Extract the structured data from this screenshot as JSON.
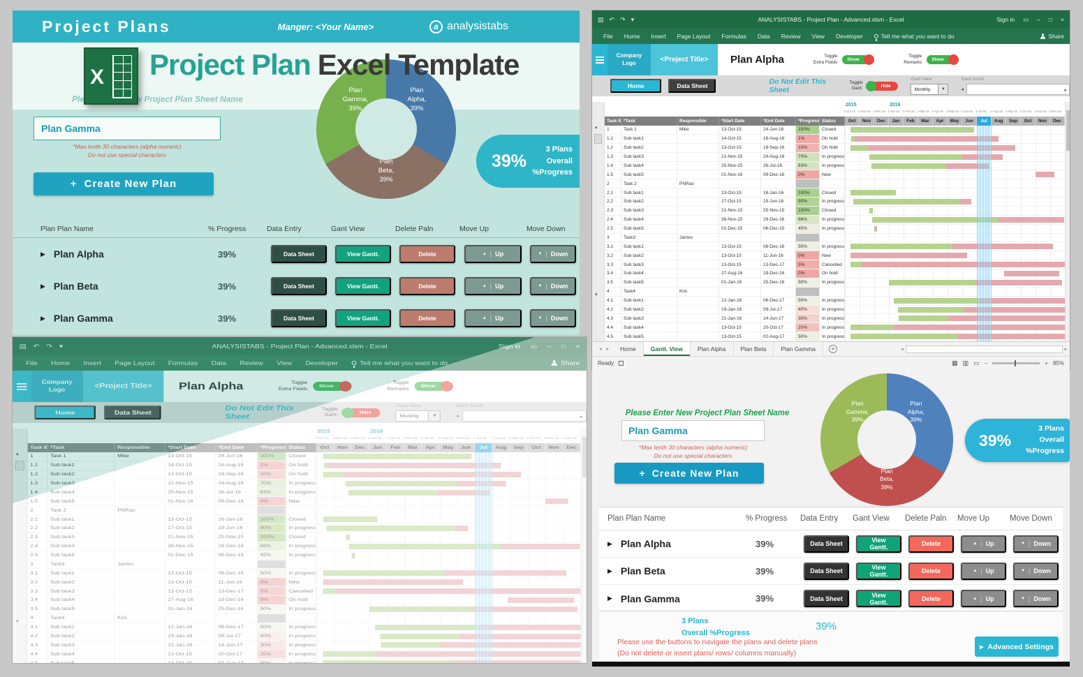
{
  "dashboard": {
    "banner": {
      "title": "Project Plans",
      "manager": "Manger: <Your Name>",
      "brand": "analysistabs",
      "brand_initial": "a"
    },
    "heading": {
      "accent": "Project Plan",
      "rest": "Excel Template"
    },
    "prompt": "Please Enter New Project Plan Sheet Name",
    "input_value": "Plan Gamma",
    "note1": "*Max lenth 30 characters (alpha numeric)",
    "note2": "Do not use special characters",
    "create_plus": "+",
    "create_button_label": "Create New Plan",
    "badge": {
      "value": "39%",
      "line1": "3 Plans",
      "line2": "Overall %Progress"
    },
    "footer": {
      "line1": "3 Plans",
      "line2": "Overall %Progress",
      "overall": "39%",
      "note1": "Please use the buttons to navigate the plans and delete plans",
      "note2": "(Do not delete or insert plans/ rows/ columns manually)",
      "advanced_label": "Advanced Settings"
    },
    "donut": {
      "slices": [
        {
          "name": "Plan Alpha",
          "value": 39,
          "lines": [
            "Plan",
            "Alpha,",
            "39%"
          ]
        },
        {
          "name": "Plan Beta",
          "value": 39,
          "lines": [
            "Plan",
            "Beta,",
            "39%"
          ]
        },
        {
          "name": "Plan Gamma",
          "value": 39,
          "lines": [
            "Plan",
            "Gamma,",
            "39%"
          ]
        }
      ]
    }
  },
  "plans": {
    "headers": [
      "Plan Plan Name",
      "% Progress",
      "Data Entry",
      "Gant View",
      "Delete Paln",
      "Move Up",
      "Move Down"
    ],
    "rows": [
      {
        "name": "Plan Alpha",
        "progress": "39%"
      },
      {
        "name": "Plan Beta",
        "progress": "39%"
      },
      {
        "name": "Plan Gamma",
        "progress": "39%"
      }
    ],
    "btn_data_sheet": "Data Sheet",
    "btn_view_gantt": "View Gantt.",
    "btn_delete": "Delete",
    "btn_up": "Up",
    "btn_down": "Down"
  },
  "excel": {
    "window_title": "ANALYSISTABS - Project Plan - Advanced.xlsm - Excel",
    "sign_in": "Sign in",
    "menu": [
      "File",
      "Home",
      "Insert",
      "Page Layout",
      "Formulas",
      "Data",
      "Review",
      "View",
      "Developer"
    ],
    "tell_me": "Tell me what you want to do",
    "share": "Share",
    "sheet_tabs": [
      "Home",
      "Gantt. View",
      "Plan Alpha",
      "Plan Beta",
      "Plan Gamma"
    ],
    "active_tab": "Gantt. View",
    "status_ready": "Ready",
    "zoom_level": "85%"
  },
  "gantt": {
    "logo_line1": "Company",
    "logo_line2": "Logo",
    "project_title": "<Project Title>",
    "plan_name": "Plan Alpha",
    "toggle_extra_l1": "Toggle",
    "toggle_extra_l2": "Extra Fields",
    "toggle_remarks_l1": "Toggle",
    "toggle_remarks_l2": "Remarks",
    "toggle_gant_l1": "Toggle",
    "toggle_gant_l2": "Gant:",
    "show_label": "Show",
    "hide_label": "Hide",
    "home_btn": "Home",
    "data_sheet_btn": "Data Sheet",
    "warning": "Do Not Edit This Sheet",
    "gant_view_label": "Gant View",
    "gant_scroll_label": "Gant Scroll",
    "view_mode": "Monthly",
    "years": [
      {
        "label": "2015",
        "col": 0
      },
      {
        "label": "2016",
        "col": 3
      }
    ],
    "date_ticks": [
      "1-Oct-15",
      "1-Nov-15",
      "1-Dec-15",
      "1-Jan-16",
      "1-Feb-16",
      "1-Mar-16",
      "1-Apr-16",
      "1-May-16",
      "1-Jun-16",
      "1-Jul-16",
      "1-Aug-16",
      "1-Sep-16",
      "1-Oct-16",
      "1-Nov-16",
      "1-Dec-16"
    ],
    "months": [
      "Oct",
      "Nov",
      "Dec",
      "Jan",
      "Feb",
      "Mar",
      "Apr",
      "May",
      "Jun",
      "Jul",
      "Aug",
      "Sep",
      "Oct",
      "Nov",
      "Dec"
    ],
    "current_month_index": 9,
    "table_headers": [
      "Task ID",
      "*Task",
      "Responsible",
      "*Start Date",
      "*End Date",
      "*Progress%",
      "Status"
    ],
    "tasks": [
      {
        "id": "1",
        "task": "Task 1",
        "resp": "Mike",
        "start": "13-Oct-15",
        "end": "24-Jun-16",
        "prog": "100%",
        "status": "Closed",
        "pc": "#a9d08e",
        "bs": 0.4,
        "be": 8.8,
        "bg": 1
      },
      {
        "id": "1.1",
        "task": "Sub task1",
        "resp": "",
        "start": "14-Oct-15",
        "end": "16-Aug-16",
        "prog": "1%",
        "status": "On hold",
        "pc": "#efa9a6",
        "bs": 0.45,
        "be": 10.5,
        "bg": 0.02
      },
      {
        "id": "1.2",
        "task": "Sub task2",
        "resp": "",
        "start": "13-Oct-15",
        "end": "18-Sep-16",
        "prog": "10%",
        "status": "On hold",
        "pc": "#f0b4b1",
        "bs": 0.4,
        "be": 11.6,
        "bg": 0.1
      },
      {
        "id": "1.3",
        "task": "Sub task3",
        "resp": "",
        "start": "21-Nov-15",
        "end": "24-Aug-16",
        "prog": "70%",
        "status": "In progress",
        "pc": "#cfe2bb",
        "bs": 1.65,
        "be": 10.75,
        "bg": 0.7
      },
      {
        "id": "1.4",
        "task": "Sub task4",
        "resp": "",
        "start": "25-Nov-15",
        "end": "26-Jul-16",
        "prog": "63%",
        "status": "In progress",
        "pc": "#d4e4c2",
        "bs": 1.8,
        "be": 9.85,
        "bg": 0.63
      },
      {
        "id": "1.5",
        "task": "Sub task5",
        "resp": "",
        "start": "01-Nov-16",
        "end": "09-Dec-16",
        "prog": "0%",
        "status": "New",
        "pc": "#eea7a4",
        "bs": 13,
        "be": 14.3,
        "bg": 0
      },
      {
        "id": "2",
        "task": "Task 2",
        "resp": "PNRao",
        "start": "",
        "end": "",
        "prog": "",
        "status": "",
        "pc": "#bfbfbf",
        "bs": null,
        "be": null,
        "bg": 0
      },
      {
        "id": "2.1",
        "task": "Sub task1",
        "resp": "",
        "start": "13-Oct-15",
        "end": "16-Jan-16",
        "prog": "100%",
        "status": "Closed",
        "pc": "#a9d08e",
        "bs": 0.4,
        "be": 3.5,
        "bg": 1
      },
      {
        "id": "2.2",
        "task": "Sub task2",
        "resp": "",
        "start": "17-Oct-15",
        "end": "19-Jun-16",
        "prog": "90%",
        "status": "In progress",
        "pc": "#b2d48f",
        "bs": 0.55,
        "be": 8.6,
        "bg": 0.9
      },
      {
        "id": "2.3",
        "task": "Sub task3",
        "resp": "",
        "start": "21-Nov-15",
        "end": "25-Nov-15",
        "prog": "100%",
        "status": "Closed",
        "pc": "#a9d08e",
        "bs": 1.65,
        "be": 1.9,
        "bg": 1
      },
      {
        "id": "2.4",
        "task": "Sub task4",
        "resp": "",
        "start": "26-Nov-15",
        "end": "29-Dec-16",
        "prog": "66%",
        "status": "In progress",
        "pc": "#d8e6c6",
        "bs": 1.85,
        "be": 14.95,
        "bg": 0.66
      },
      {
        "id": "2.5",
        "task": "Sub task5",
        "resp": "",
        "start": "01-Dec-15",
        "end": "06-Dec-15",
        "prog": "45%",
        "status": "In progress",
        "pc": "#f0eee2",
        "bs": 2,
        "be": 2.2,
        "bg": 0.45
      },
      {
        "id": "3",
        "task": "Task3",
        "resp": "James",
        "start": "",
        "end": "",
        "prog": "",
        "status": "",
        "pc": "#bfbfbf",
        "bs": null,
        "be": null,
        "bg": 0
      },
      {
        "id": "3.1",
        "task": "Sub task1",
        "resp": "",
        "start": "13-Oct-15",
        "end": "06-Dec-16",
        "prog": "50%",
        "status": "In progress",
        "pc": "#eef0e3",
        "bs": 0.4,
        "be": 14.2,
        "bg": 0.5
      },
      {
        "id": "3.2",
        "task": "Sub task2",
        "resp": "",
        "start": "13-Oct-15",
        "end": "11-Jun-16",
        "prog": "0%",
        "status": "New",
        "pc": "#eea7a4",
        "bs": 0.4,
        "be": 8.35,
        "bg": 0
      },
      {
        "id": "3.3",
        "task": "Sub task3",
        "resp": "",
        "start": "13-Oct-15",
        "end": "13-Dec-17",
        "prog": "5%",
        "status": "Cancelled",
        "pc": "#efaeab",
        "bs": 0.4,
        "be": 15,
        "bg": 0.05
      },
      {
        "id": "3.4",
        "task": "Sub task4",
        "resp": "",
        "start": "27-Aug-16",
        "end": "19-Dec-16",
        "prog": "0%",
        "status": "On hold",
        "pc": "#eea7a4",
        "bs": 10.85,
        "be": 14.6,
        "bg": 0
      },
      {
        "id": "3.5",
        "task": "Sub task5",
        "resp": "",
        "start": "01-Jan-16",
        "end": "25-Dec-16",
        "prog": "50%",
        "status": "In progress",
        "pc": "#eef0e3",
        "bs": 3,
        "be": 14.8,
        "bg": 0.5
      },
      {
        "id": "4",
        "task": "Task4",
        "resp": "Kris",
        "start": "",
        "end": "",
        "prog": "",
        "status": "",
        "pc": "#bfbfbf",
        "bs": null,
        "be": null,
        "bg": 0
      },
      {
        "id": "4.1",
        "task": "Sub task1",
        "resp": "",
        "start": "12-Jan-16",
        "end": "06-Dec-17",
        "prog": "50%",
        "status": "In progress",
        "pc": "#eef0e3",
        "bs": 3.35,
        "be": 15,
        "bg": 0.5
      },
      {
        "id": "4.2",
        "task": "Sub task2",
        "resp": "",
        "start": "19-Jan-16",
        "end": "09-Jul-17",
        "prog": "40%",
        "status": "In progress",
        "pc": "#f6ded8",
        "bs": 3.6,
        "be": 15,
        "bg": 0.4
      },
      {
        "id": "4.3",
        "task": "Sub task3",
        "resp": "",
        "start": "21-Jan-16",
        "end": "14-Jun-17",
        "prog": "30%",
        "status": "In progress",
        "pc": "#f5d3cd",
        "bs": 3.65,
        "be": 15,
        "bg": 0.3
      },
      {
        "id": "4.4",
        "task": "Sub task4",
        "resp": "",
        "start": "13-Oct-15",
        "end": "20-Oct-17",
        "prog": "20%",
        "status": "In progress",
        "pc": "#f3c1bc",
        "bs": 0.4,
        "be": 15,
        "bg": 0.2
      },
      {
        "id": "4.5",
        "task": "Sub task5",
        "resp": "",
        "start": "13-Oct-15",
        "end": "02-Aug-17",
        "prog": "50%",
        "status": "In progress",
        "pc": "#eef0e3",
        "bs": 0.4,
        "be": 15,
        "bg": 0.5
      }
    ]
  },
  "colors": {
    "banner_teal": "#2fb3c4",
    "mint": "#c2e4de",
    "accent_cyan": "#29b7d3",
    "excel_green": "#217346",
    "bar_done": "#b5d38f",
    "bar_remaining": "#e4a9ad",
    "donut_top": [
      "#4679a8",
      "#8b7064",
      "#77b14e"
    ],
    "donut_bottom": [
      "#4f81bd",
      "#c0504d",
      "#9bbb59"
    ]
  }
}
